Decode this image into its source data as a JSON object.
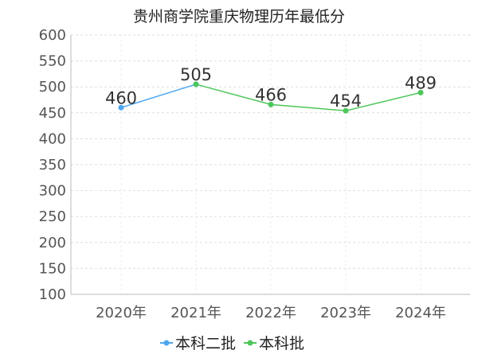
{
  "chart_data": {
    "type": "line",
    "title": "贵州商学院重庆物理历年最低分",
    "categories": [
      "2020年",
      "2021年",
      "2022年",
      "2023年",
      "2024年"
    ],
    "ylim": [
      100,
      600
    ],
    "yticks": [
      100,
      150,
      200,
      250,
      300,
      350,
      400,
      450,
      500,
      550,
      600
    ],
    "grid": true,
    "legend_position": "bottom",
    "series": [
      {
        "name": "本科二批",
        "color": "#4da6f0",
        "points": [
          {
            "category": "2020年",
            "value": 460
          },
          {
            "category": "2021年",
            "value": 505
          }
        ]
      },
      {
        "name": "本科批",
        "color": "#4cc75a",
        "points": [
          {
            "category": "2021年",
            "value": 505
          },
          {
            "category": "2022年",
            "value": 466
          },
          {
            "category": "2023年",
            "value": 454
          },
          {
            "category": "2024年",
            "value": 489
          }
        ]
      }
    ],
    "data_labels": [
      {
        "category": "2020年",
        "value": 460
      },
      {
        "category": "2021年",
        "value": 505
      },
      {
        "category": "2022年",
        "value": 466
      },
      {
        "category": "2023年",
        "value": 454
      },
      {
        "category": "2024年",
        "value": 489
      }
    ]
  }
}
